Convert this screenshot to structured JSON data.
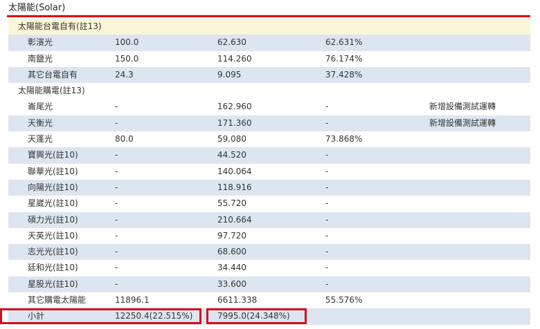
{
  "title": "太陽能(Solar)",
  "rows": [
    {
      "type": "section",
      "name": "太陽能台電自有(註13)"
    },
    {
      "type": "data",
      "style": "alt",
      "name": "彰濱光",
      "capacity": "100.0",
      "generation": "62.630",
      "percent": "62.631%",
      "note": ""
    },
    {
      "type": "data",
      "style": "",
      "name": "南鹽光",
      "capacity": "150.0",
      "generation": "114.260",
      "percent": "76.174%",
      "note": ""
    },
    {
      "type": "data",
      "style": "alt",
      "name": "其它台電自有",
      "capacity": "24.3",
      "generation": "9.095",
      "percent": "37.428%",
      "note": ""
    },
    {
      "type": "section2",
      "name": "太陽能購電(註13)"
    },
    {
      "type": "data",
      "style": "",
      "name": "崙尾光",
      "capacity": "-",
      "generation": "162.960",
      "percent": "-",
      "note": "新增設備測試運轉"
    },
    {
      "type": "data",
      "style": "alt",
      "name": "天衡光",
      "capacity": "-",
      "generation": "171.360",
      "percent": "-",
      "note": "新增設備測試運轉"
    },
    {
      "type": "data",
      "style": "",
      "name": "天蓬光",
      "capacity": "80.0",
      "generation": "59.080",
      "percent": "73.868%",
      "note": ""
    },
    {
      "type": "data",
      "style": "alt",
      "name": "寶興光(註10)",
      "capacity": "-",
      "generation": "44.520",
      "percent": "-",
      "note": ""
    },
    {
      "type": "data",
      "style": "",
      "name": "聯華光(註10)",
      "capacity": "-",
      "generation": "140.064",
      "percent": "-",
      "note": ""
    },
    {
      "type": "data",
      "style": "alt",
      "name": "向陽光(註10)",
      "capacity": "-",
      "generation": "118.916",
      "percent": "-",
      "note": ""
    },
    {
      "type": "data",
      "style": "",
      "name": "星崴光(註10)",
      "capacity": "-",
      "generation": "55.720",
      "percent": "-",
      "note": ""
    },
    {
      "type": "data",
      "style": "alt",
      "name": "碩力光(註10)",
      "capacity": "-",
      "generation": "210.664",
      "percent": "-",
      "note": ""
    },
    {
      "type": "data",
      "style": "",
      "name": "天英光(註10)",
      "capacity": "-",
      "generation": "97.720",
      "percent": "-",
      "note": ""
    },
    {
      "type": "data",
      "style": "alt",
      "name": "志光光(註10)",
      "capacity": "-",
      "generation": "68.600",
      "percent": "-",
      "note": ""
    },
    {
      "type": "data",
      "style": "",
      "name": "廷和光(註10)",
      "capacity": "-",
      "generation": "34.440",
      "percent": "-",
      "note": ""
    },
    {
      "type": "data",
      "style": "alt",
      "name": "星股光(註10)",
      "capacity": "-",
      "generation": "33.600",
      "percent": "-",
      "note": ""
    },
    {
      "type": "data",
      "style": "",
      "name": "其它購電太陽能",
      "capacity": "11896.1",
      "generation": "6611.338",
      "percent": "55.576%",
      "note": ""
    },
    {
      "type": "data",
      "style": "alt",
      "name": "小計",
      "capacity": "12250.4(22.515%)",
      "generation": "7995.0(24.348%)",
      "percent": "",
      "note": "",
      "highlight": true
    }
  ],
  "accent_color": "#e00000"
}
